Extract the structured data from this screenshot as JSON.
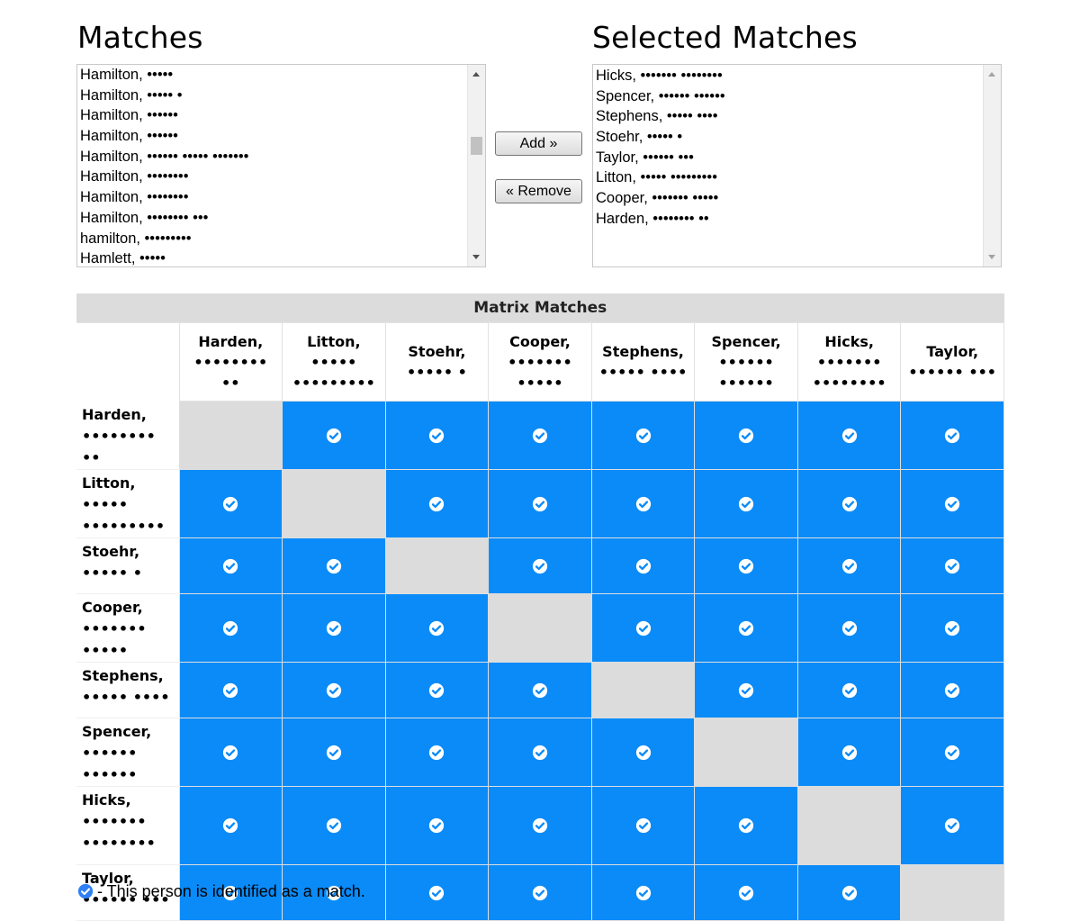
{
  "headings": {
    "matches": "Matches",
    "selected": "Selected Matches"
  },
  "matches_list": [
    "Hamilton, •••••",
    "Hamilton, ••••• •",
    "Hamilton, ••••••",
    "Hamilton, ••••••",
    "Hamilton, •••••• ••••• •••••••",
    "Hamilton, ••••••••",
    "Hamilton, ••••••••",
    "Hamilton, •••••••• •••",
    "hamilton, •••••••••",
    "Hamlett, •••••"
  ],
  "selected_list": [
    "Hicks, ••••••• ••••••••",
    "Spencer, •••••• ••••••",
    "Stephens, ••••• ••••",
    "Stoehr, ••••• •",
    "Taylor, •••••• •••",
    "Litton, ••••• •••••••••",
    "Cooper, ••••••• •••••",
    "Harden, •••••••• ••"
  ],
  "buttons": {
    "add": "Add »",
    "remove": "« Remove"
  },
  "matrix": {
    "title": "Matrix Matches",
    "people": [
      {
        "last": "Harden,",
        "first": "•••••••• ••"
      },
      {
        "last": "Litton,",
        "first": "••••• •••••••••"
      },
      {
        "last": "Stoehr,",
        "first": "••••• •"
      },
      {
        "last": "Cooper,",
        "first": "••••••• •••••"
      },
      {
        "last": "Stephens,",
        "first": "••••• ••••"
      },
      {
        "last": "Spencer,",
        "first": "•••••• ••••••"
      },
      {
        "last": "Hicks,",
        "first": "••••••• ••••••••"
      },
      {
        "last": "Taylor,",
        "first": "•••••• •••"
      }
    ],
    "column_header_lines": [
      [
        "Harden,",
        "•••••••• ••"
      ],
      [
        "Litton, •••••",
        "•••••••••"
      ],
      [
        "Stoehr,",
        "••••• •"
      ],
      [
        "Cooper,",
        "••••••• •••••"
      ],
      [
        "Stephens,",
        "••••• ••••"
      ],
      [
        "Spencer,",
        "•••••• ••••••"
      ],
      [
        "Hicks,",
        "•••••••",
        "••••••••"
      ],
      [
        "Taylor,",
        "•••••• •••"
      ]
    ],
    "row_header_lines": [
      [
        "Harden,",
        "•••••••• ••"
      ],
      [
        "Litton, •••••",
        "•••••••••"
      ],
      [
        "Stoehr,",
        "••••• •"
      ],
      [
        "Cooper,",
        "••••••• •••••"
      ],
      [
        "Stephens,",
        "••••• ••••"
      ],
      [
        "Spencer,",
        "•••••• ••••••"
      ],
      [
        "Hicks,",
        "•••••••",
        "••••••••"
      ],
      [
        "Taylor,",
        "•••••• •••"
      ]
    ],
    "row_heights": [
      62,
      62,
      62,
      62,
      62,
      63,
      87,
      62
    ]
  },
  "legend": {
    "text": "- This person is identified as a match."
  },
  "colors": {
    "match": "#0a8bf8",
    "self": "#dcdcdc",
    "header_bar": "#dcdcdc"
  },
  "icons": {
    "match": "check-circle-icon"
  }
}
